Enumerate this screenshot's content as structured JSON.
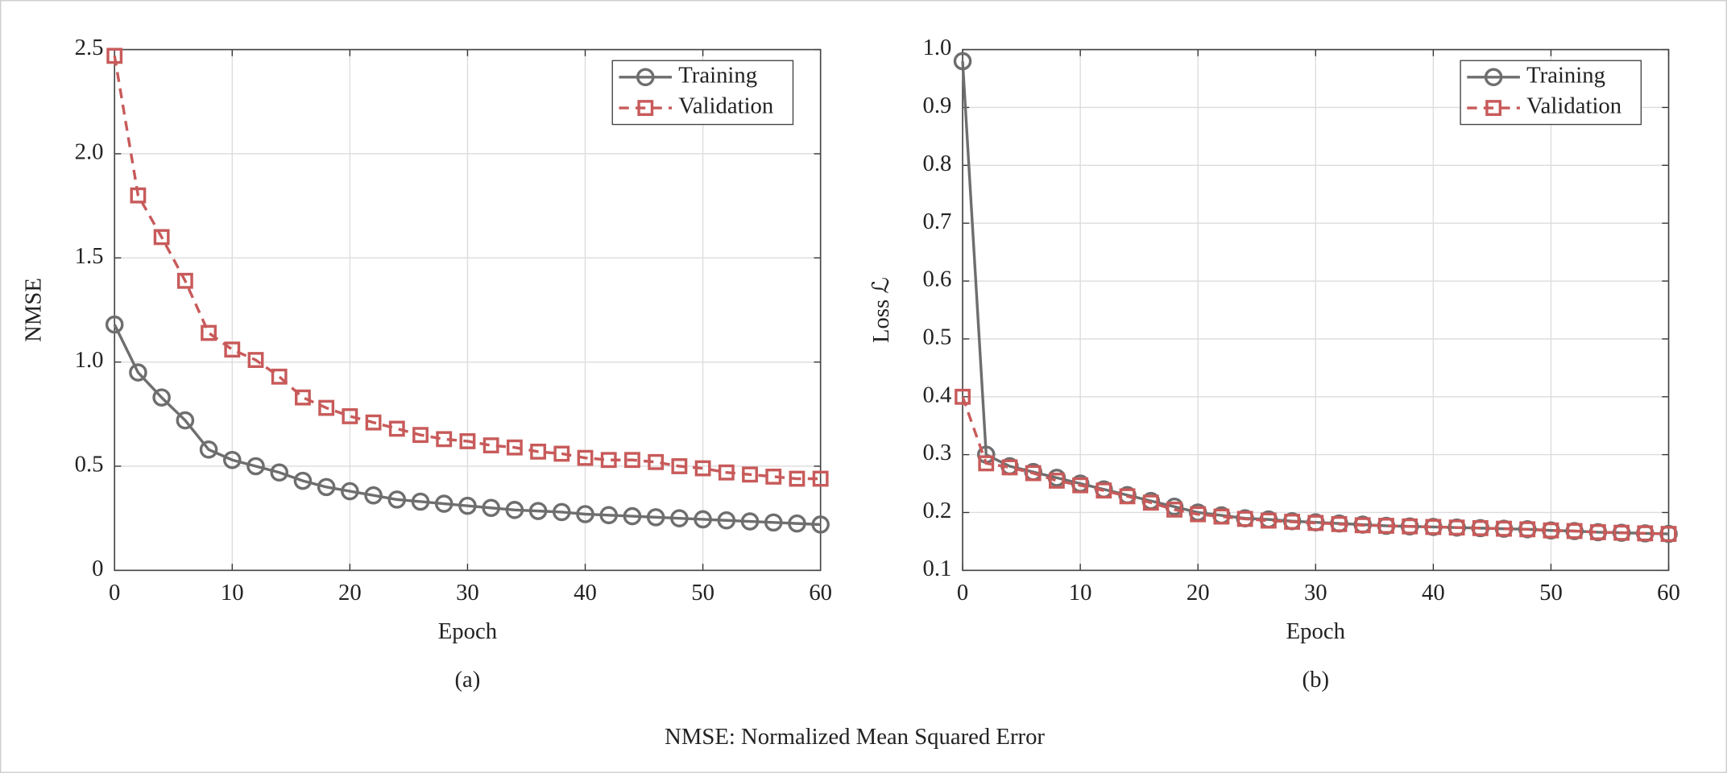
{
  "chart_data": [
    {
      "type": "line",
      "caption": "(a)",
      "xlabel": "Epoch",
      "ylabel": "NMSE",
      "x": [
        0,
        2,
        4,
        6,
        8,
        10,
        12,
        14,
        16,
        18,
        20,
        22,
        24,
        26,
        28,
        30,
        32,
        34,
        36,
        38,
        40,
        42,
        44,
        46,
        48,
        50,
        52,
        54,
        56,
        58,
        60
      ],
      "series": [
        {
          "name": "Training",
          "color": "#6e6e6e",
          "line_style": "solid",
          "marker": "circle",
          "values": [
            1.18,
            0.95,
            0.83,
            0.72,
            0.58,
            0.53,
            0.5,
            0.47,
            0.43,
            0.4,
            0.38,
            0.36,
            0.34,
            0.33,
            0.32,
            0.31,
            0.3,
            0.29,
            0.285,
            0.28,
            0.27,
            0.265,
            0.26,
            0.255,
            0.25,
            0.245,
            0.24,
            0.235,
            0.23,
            0.225,
            0.22
          ]
        },
        {
          "name": "Validation",
          "color": "#c85a5a",
          "line_style": "dashed",
          "marker": "square",
          "values": [
            2.47,
            1.8,
            1.6,
            1.39,
            1.14,
            1.06,
            1.01,
            0.93,
            0.83,
            0.78,
            0.74,
            0.71,
            0.68,
            0.65,
            0.63,
            0.62,
            0.6,
            0.59,
            0.57,
            0.56,
            0.54,
            0.53,
            0.53,
            0.52,
            0.5,
            0.49,
            0.47,
            0.46,
            0.45,
            0.44,
            0.44
          ]
        }
      ],
      "xlim": [
        0,
        60
      ],
      "xticks": [
        0,
        10,
        20,
        30,
        40,
        50,
        60
      ],
      "ylim": [
        0,
        2.5
      ],
      "yticks": [
        0,
        0.5,
        {
          "value": 1,
          "label": "1.0"
        },
        1.5,
        {
          "value": 2,
          "label": "2.0"
        },
        2.5
      ],
      "grid": true,
      "legend": "upper right"
    },
    {
      "type": "line",
      "caption": "(b)",
      "xlabel": "Epoch",
      "ylabel": "Loss ℒ",
      "x": [
        0,
        2,
        4,
        6,
        8,
        10,
        12,
        14,
        16,
        18,
        20,
        22,
        24,
        26,
        28,
        30,
        32,
        34,
        36,
        38,
        40,
        42,
        44,
        46,
        48,
        50,
        52,
        54,
        56,
        58,
        60
      ],
      "series": [
        {
          "name": "Training",
          "color": "#6e6e6e",
          "line_style": "solid",
          "marker": "circle",
          "values": [
            0.98,
            0.3,
            0.28,
            0.27,
            0.26,
            0.25,
            0.24,
            0.23,
            0.22,
            0.21,
            0.2,
            0.195,
            0.19,
            0.188,
            0.185,
            0.183,
            0.181,
            0.179,
            0.177,
            0.176,
            0.175,
            0.174,
            0.173,
            0.172,
            0.171,
            0.169,
            0.168,
            0.166,
            0.165,
            0.164,
            0.163
          ]
        },
        {
          "name": "Validation",
          "color": "#c85a5a",
          "line_style": "dashed",
          "marker": "square",
          "values": [
            0.4,
            0.285,
            0.278,
            0.268,
            0.255,
            0.247,
            0.238,
            0.228,
            0.217,
            0.205,
            0.197,
            0.193,
            0.189,
            0.186,
            0.184,
            0.182,
            0.18,
            0.178,
            0.177,
            0.176,
            0.175,
            0.174,
            0.173,
            0.172,
            0.171,
            0.169,
            0.168,
            0.166,
            0.165,
            0.164,
            0.163
          ]
        }
      ],
      "xlim": [
        0,
        60
      ],
      "xticks": [
        0,
        10,
        20,
        30,
        40,
        50,
        60
      ],
      "ylim": [
        0.1,
        1
      ],
      "yticks": [
        0.1,
        0.2,
        0.3,
        0.4,
        0.5,
        0.6,
        0.7,
        0.8,
        0.9,
        {
          "value": 1,
          "label": "1.0"
        }
      ],
      "grid": true,
      "legend": "upper right"
    }
  ],
  "footnote": "NMSE: Normalized Mean Squared Error"
}
